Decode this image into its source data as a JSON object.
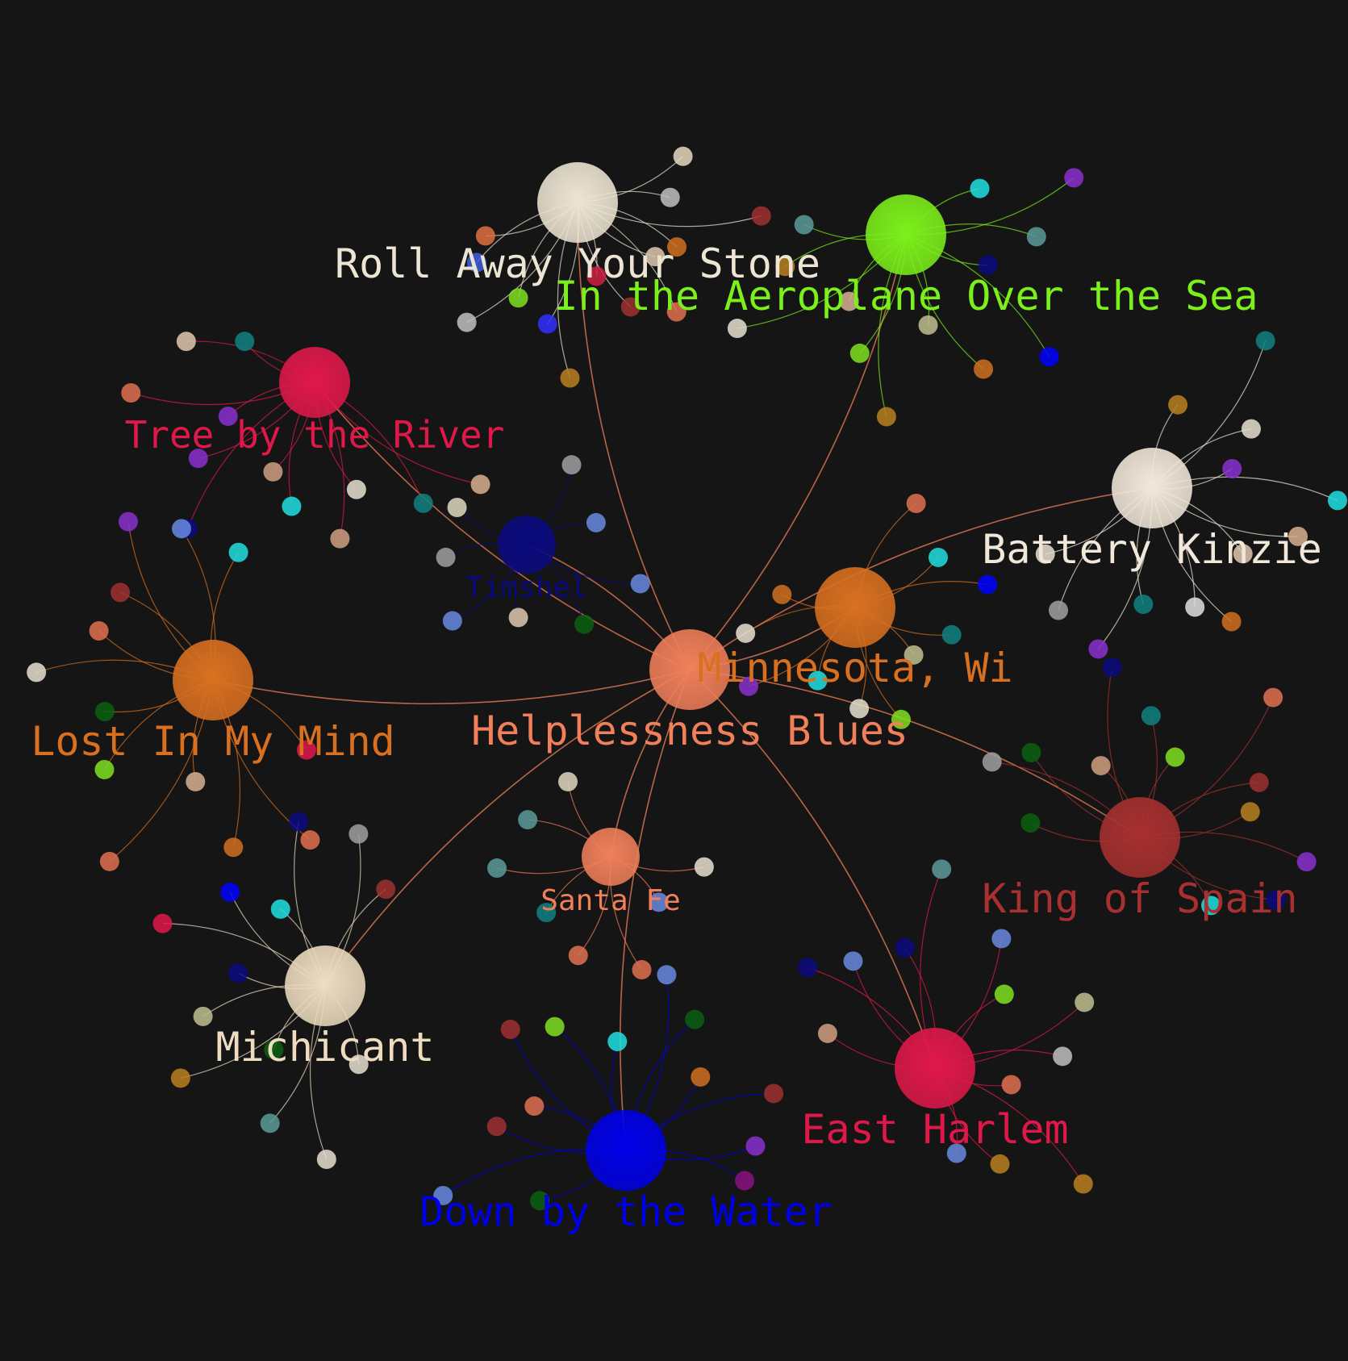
{
  "background": "#151515",
  "center": {
    "label": "Helplessness Blues",
    "color": "#f07f5a"
  },
  "hubs": [
    {
      "id": "roll",
      "label": "Roll Away Your Stone",
      "color": "#ede5d3",
      "satellites": [
        "#e07040",
        "#3f5fe0",
        "#c0c0c0",
        "#80e020",
        "#3030ff",
        "#b88020",
        "#d02040",
        "#a03030",
        "#e07050",
        "#e0c8b0",
        "#d07020",
        "#a03030",
        "#c0c0c0",
        "#e8d8c0"
      ]
    },
    {
      "id": "aero",
      "label": "In the Aeroplane Over the Sea",
      "color": "#7cf01a",
      "satellites": [
        "#5a9a9a",
        "#b88020",
        "#e8e0d0",
        "#d8b090",
        "#80e020",
        "#b88020",
        "#c0c090",
        "#d07020",
        "#0000ff",
        "#0a0a80",
        "#5a9a9a",
        "#8a30d0",
        "#20e0e0"
      ]
    },
    {
      "id": "tree",
      "label": "Tree by the River",
      "color": "#e0184a",
      "satellites": [
        "#108080",
        "#e0c8b0",
        "#e07050",
        "#8a30d0",
        "#8a30d0",
        "#0a0a80",
        "#d0a080",
        "#20e0e0",
        "#d0a080",
        "#e8e0d0",
        "#108080",
        "#d8b090"
      ]
    },
    {
      "id": "timshel",
      "label": "Timshel",
      "color": "#0a0a80",
      "satellites": [
        "#e0d8c0",
        "#a0a0a0",
        "#6a8ae0",
        "#e0c8b0",
        "#0a6010",
        "#6a8ae0",
        "#6a8ae0",
        "#a0a0a0"
      ]
    },
    {
      "id": "battery",
      "label": "Battery Kinzie",
      "color": "#f2e8da",
      "satellites": [
        "#e8e0d0",
        "#a0a0a0",
        "#8a30d0",
        "#108080",
        "#e0e0e0",
        "#d07020",
        "#e0c8b0",
        "#d8b090",
        "#20e0e0",
        "#8a30d0",
        "#e8e0d0",
        "#108080",
        "#b88020"
      ]
    },
    {
      "id": "minnesota",
      "label": "Minnesota, Wi",
      "color": "#d97020",
      "satellites": [
        "#d07020",
        "#e8e0d0",
        "#8a30d0",
        "#20e0e0",
        "#e8e0d0",
        "#80e020",
        "#c0c090",
        "#108080",
        "#0000ff",
        "#20e0e0",
        "#e07050"
      ]
    },
    {
      "id": "lost",
      "label": "Lost In My Mind",
      "color": "#d97020",
      "satellites": [
        "#20e0e0",
        "#6a8ae0",
        "#8a30d0",
        "#a03030",
        "#e07050",
        "#e8e0d0",
        "#0a6010",
        "#80e020",
        "#e07050",
        "#d8b090",
        "#d07020",
        "#e07050",
        "#e0184a"
      ]
    },
    {
      "id": "santafe",
      "label": "Santa Fe",
      "color": "#f07f5a",
      "satellites": [
        "#e0d8c0",
        "#5a9a9a",
        "#5a9a9a",
        "#108080",
        "#e07050",
        "#e07050",
        "#6a8ae0",
        "#e8e0d0"
      ]
    },
    {
      "id": "spain",
      "label": "King of Spain",
      "color": "#a83030",
      "satellites": [
        "#20e0e0",
        "#0a0a80",
        "#8a30d0",
        "#b88020",
        "#a03030",
        "#e07050",
        "#80e020",
        "#108080",
        "#0a0a80",
        "#d0a080",
        "#0a6010",
        "#a0a0a0",
        "#0a6010"
      ]
    },
    {
      "id": "michicant",
      "label": "Michicant",
      "color": "#eddcc0",
      "satellites": [
        "#a03030",
        "#a0a0a0",
        "#0a0a80",
        "#20e0e0",
        "#0000ff",
        "#e0184a",
        "#0a0a80",
        "#c0c090",
        "#b88020",
        "#0a6010",
        "#5a9a9a",
        "#e8e0d0",
        "#e8e0d0"
      ]
    },
    {
      "id": "harlem",
      "label": "East Harlem",
      "color": "#e0184a",
      "satellites": [
        "#6a8ae0",
        "#b88020",
        "#b88020",
        "#e07050",
        "#c0c0c0",
        "#c0c090",
        "#80e020",
        "#6a8ae0",
        "#5a9a9a",
        "#0a0a80",
        "#6a8ae0",
        "#0a0a80",
        "#d0a080"
      ]
    },
    {
      "id": "water",
      "label": "Down by the Water",
      "color": "#0000e8",
      "satellites": [
        "#8a1080",
        "#8a30d0",
        "#a03030",
        "#d07020",
        "#0a6010",
        "#6a8ae0",
        "#20e0e0",
        "#80e020",
        "#a03030",
        "#e07050",
        "#a03030",
        "#6a8ae0",
        "#0a6010"
      ]
    }
  ]
}
